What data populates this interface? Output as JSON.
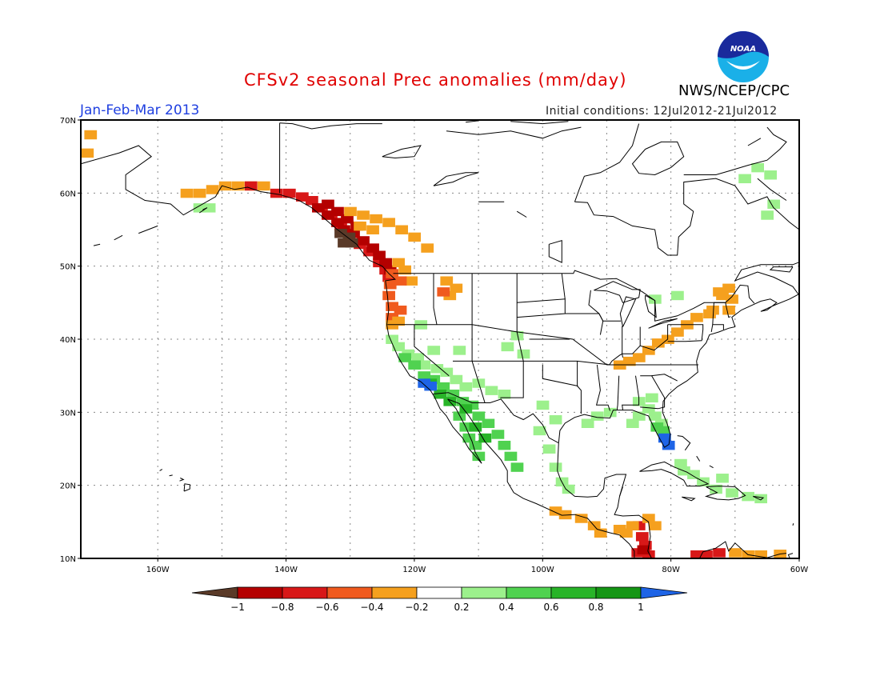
{
  "title": "CFSv2 seasonal Prec anomalies (mm/day)",
  "period": "Jan-Feb-Mar 2013",
  "initial_conditions": "Initial conditions: 12Jul2012-21Jul2012",
  "agency": "NWS/NCEP/CPC",
  "logo_text": "NOAA",
  "map": {
    "lon_range": [
      -172,
      -60
    ],
    "lat_range": [
      10,
      70
    ],
    "lat_ticks": [
      "10N",
      "20N",
      "30N",
      "40N",
      "50N",
      "60N",
      "70N"
    ],
    "lon_ticks": [
      "160W",
      "140W",
      "120W",
      "100W",
      "80W",
      "60W"
    ],
    "gridlines": true
  },
  "colorbar": {
    "labels": [
      "−1",
      "−0.8",
      "−0.6",
      "−0.4",
      "−0.2",
      "0.2",
      "0.4",
      "0.6",
      "0.8",
      "1"
    ],
    "colors": {
      "lt_-1": "#5a3a28",
      "-1_-0.8": "#b40000",
      "-0.8_-0.6": "#d81818",
      "-0.6_-0.4": "#f05a1e",
      "-0.4_-0.2": "#f5a01e",
      "-0.2_0.2": "#ffffff",
      "0.2_0.4": "#9cf08c",
      "0.4_0.6": "#50d250",
      "0.6_0.8": "#28b428",
      "0.8_1": "#149614",
      "gt_1": "#1e64e6"
    }
  },
  "anomaly_regions": [
    {
      "region": "Alaska southern coast",
      "color": "#f5a01e"
    },
    {
      "region": "Southeast Alaska / British Columbia coast",
      "color": "#b40000"
    },
    {
      "region": "Haida Gwaii",
      "color": "#5a3a28"
    },
    {
      "region": "Pacific Northwest coast",
      "color": "#f05a1e"
    },
    {
      "region": "Northern Rockies",
      "color": "#f5a01e"
    },
    {
      "region": "Ohio Valley / Appalachians",
      "color": "#f5a01e"
    },
    {
      "region": "New England",
      "color": "#f5a01e"
    },
    {
      "region": "California / Southwest",
      "color": "#50d250"
    },
    {
      "region": "Southern California coast",
      "color": "#1e64e6"
    },
    {
      "region": "Florida",
      "color": "#1e64e6"
    },
    {
      "region": "Cuba / Caribbean",
      "color": "#9cf08c"
    },
    {
      "region": "Central America Pacific",
      "color": "#d81818"
    }
  ]
}
